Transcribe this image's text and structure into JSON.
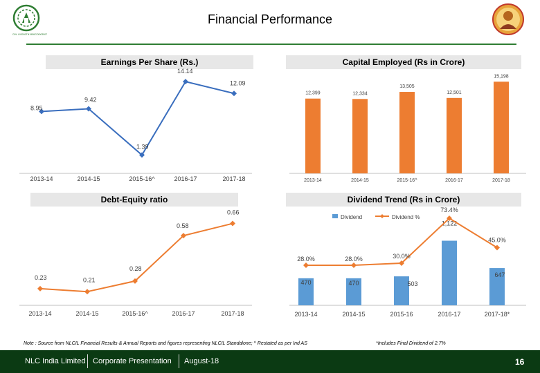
{
  "header": {
    "title": "Financial Performance",
    "logo_caption": "CIN: L93090TN1956GOI003507",
    "logo_left_icon": "nlc-emblem-icon",
    "logo_right_icon": "portrait-emblem-icon"
  },
  "panels": {
    "eps": "Earnings Per Share (Rs.)",
    "capital": "Capital Employed (Rs in Crore)",
    "debt": "Debt-Equity ratio",
    "dividend": "Dividend Trend (Rs in Crore)"
  },
  "chart_data": [
    {
      "type": "line",
      "title": "Earnings Per Share (Rs.)",
      "categories": [
        "2013-14",
        "2014-15",
        "2015-16^",
        "2016-17",
        "2017-18"
      ],
      "values": [
        8.95,
        9.42,
        1.39,
        14.14,
        12.09
      ],
      "labels": [
        "8.95",
        "9.42",
        "1.39",
        "14.14",
        "12.09"
      ],
      "ylim": [
        0,
        15
      ],
      "color": "#3a6ebe"
    },
    {
      "type": "bar",
      "title": "Capital Employed (Rs in Crore)",
      "categories": [
        "2013-14",
        "2014-15",
        "2015-16^",
        "2016-17",
        "2017-18"
      ],
      "values": [
        12399,
        12334,
        13505,
        12501,
        15198
      ],
      "labels": [
        "12,399",
        "12,334",
        "13,505",
        "12,501",
        "15,198"
      ],
      "ylim": [
        0,
        15800
      ],
      "color": "#ed7d31"
    },
    {
      "type": "line",
      "title": "Debt-Equity ratio",
      "categories": [
        "2013-14",
        "2014-15",
        "2015-16^",
        "2016-17",
        "2017-18"
      ],
      "values": [
        0.23,
        0.21,
        0.28,
        0.58,
        0.66
      ],
      "labels": [
        "0.23",
        "0.21",
        "0.28",
        "0.58",
        "0.66"
      ],
      "ylim": [
        0.12,
        0.74
      ],
      "color": "#ed7d31"
    },
    {
      "type": "bar",
      "title": "Dividend Trend (Rs in Crore)",
      "categories": [
        "2013-14",
        "2014-15",
        "2015-16",
        "2016-17",
        "2017-18*"
      ],
      "legend": [
        "Dividend",
        "Dividend %"
      ],
      "series": [
        {
          "name": "Dividend",
          "type": "bar",
          "values": [
            470,
            470,
            503,
            1122,
            647
          ],
          "labels": [
            "470",
            "470",
            "503",
            "1,122",
            "647"
          ],
          "color": "#5b9bd5"
        },
        {
          "name": "Dividend %",
          "type": "line",
          "values": [
            28.0,
            28.0,
            30.0,
            73.4,
            45.0
          ],
          "labels": [
            "28.0%",
            "28.0%",
            "30.0%",
            "73.4%",
            "45.0%"
          ],
          "color": "#ed7d31"
        }
      ]
    }
  ],
  "notes": {
    "left": "Note : Source from NLCIL Financial Results & Annual Reports and figures representing NLCIL Standalone; ^ Restated as per Ind AS",
    "right": "*Includes Final Dividend of 2.7%"
  },
  "footer": {
    "company": "NLC India Limited",
    "doc": "Corporate Presentation",
    "date": "August-18",
    "page": "16"
  }
}
